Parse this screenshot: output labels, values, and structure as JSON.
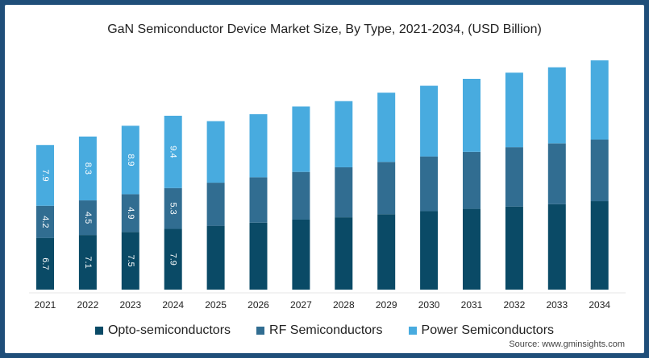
{
  "chart_data": {
    "type": "bar",
    "stacked": true,
    "title": "GaN Semiconductor Device Market Size, By Type, 2021-2034, (USD Billion)",
    "categories": [
      "2021",
      "2022",
      "2023",
      "2024",
      "2025",
      "2026",
      "2027",
      "2028",
      "2029",
      "2030",
      "2031",
      "2032",
      "2033",
      "2034"
    ],
    "series": [
      {
        "name": "Opto-semiconductors",
        "color": "#0a4a66",
        "values": [
          6.7,
          7.1,
          7.5,
          7.9,
          8.3,
          8.7,
          9.1,
          9.4,
          9.8,
          10.2,
          10.5,
          10.8,
          11.1,
          11.5
        ],
        "labels": [
          "6.7",
          "7.1",
          "7.5",
          "7.9",
          "",
          "",
          "",
          "",
          "",
          "",
          "",
          "",
          "",
          ""
        ]
      },
      {
        "name": "RF Semiconductors",
        "color": "#316d91",
        "values": [
          4.2,
          4.5,
          4.9,
          5.3,
          5.6,
          5.9,
          6.2,
          6.5,
          6.8,
          7.1,
          7.4,
          7.7,
          7.9,
          8.0
        ],
        "labels": [
          "4.2",
          "4.5",
          "4.9",
          "5.3",
          "",
          "",
          "",
          "",
          "",
          "",
          "",
          "",
          "",
          ""
        ]
      },
      {
        "name": "Power Semiconductors",
        "color": "#48abdf",
        "values": [
          7.9,
          8.3,
          8.9,
          9.4,
          8.0,
          8.2,
          8.5,
          8.6,
          9.0,
          9.2,
          9.5,
          9.7,
          9.9,
          10.3
        ],
        "labels": [
          "7.9",
          "8.3",
          "8.9",
          "9.4",
          "",
          "",
          "",
          "",
          "",
          "",
          "",
          "",
          "",
          ""
        ]
      }
    ],
    "ylim": [
      0,
      32
    ],
    "grid": false,
    "legend_position": "bottom"
  },
  "source": "Source: www.gminsights.com"
}
